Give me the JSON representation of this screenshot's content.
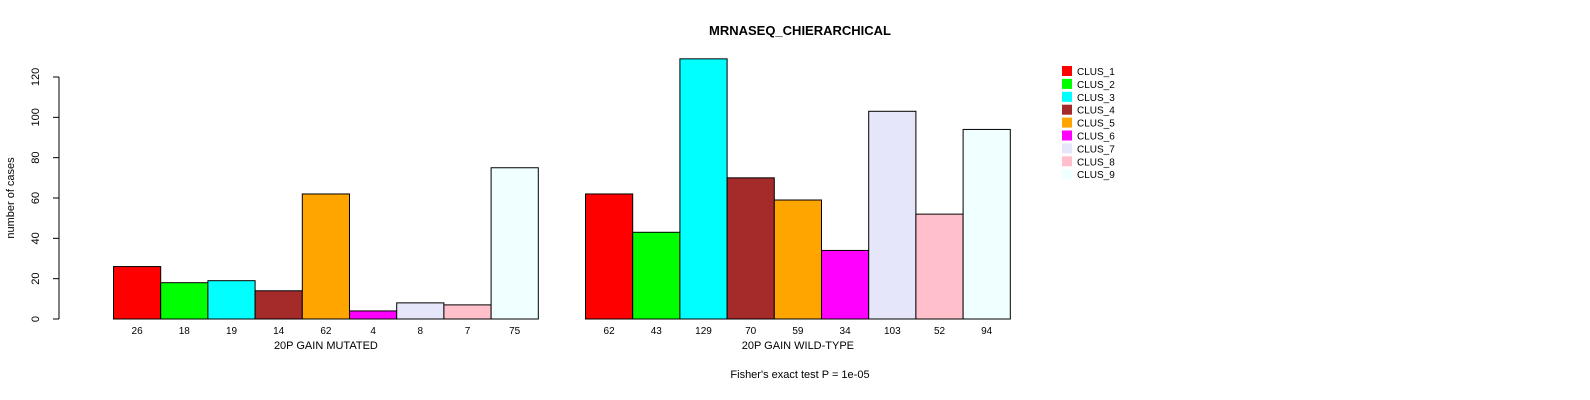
{
  "chart_data": {
    "type": "bar",
    "title": "MRNASEQ_CHIERARCHICAL",
    "ylabel": "number of cases",
    "ylim": [
      0,
      120
    ],
    "yticks": [
      0,
      20,
      40,
      60,
      80,
      100,
      120
    ],
    "footer": "Fisher's exact test P = 1e-05",
    "legend_position": "top-right",
    "clusters": [
      "CLUS_1",
      "CLUS_2",
      "CLUS_3",
      "CLUS_4",
      "CLUS_5",
      "CLUS_6",
      "CLUS_7",
      "CLUS_8",
      "CLUS_9"
    ],
    "colors": [
      "#FF0000",
      "#00FF00",
      "#00FFFF",
      "#A52A2A",
      "#FFA500",
      "#FF00FF",
      "#E6E6FA",
      "#FFC0CB",
      "#F0FFFF"
    ],
    "groups": [
      {
        "name": "20P GAIN MUTATED",
        "values": [
          26,
          18,
          19,
          14,
          62,
          4,
          8,
          7,
          75
        ]
      },
      {
        "name": "20P GAIN WILD-TYPE",
        "values": [
          62,
          43,
          129,
          70,
          59,
          34,
          103,
          52,
          94
        ]
      }
    ]
  }
}
